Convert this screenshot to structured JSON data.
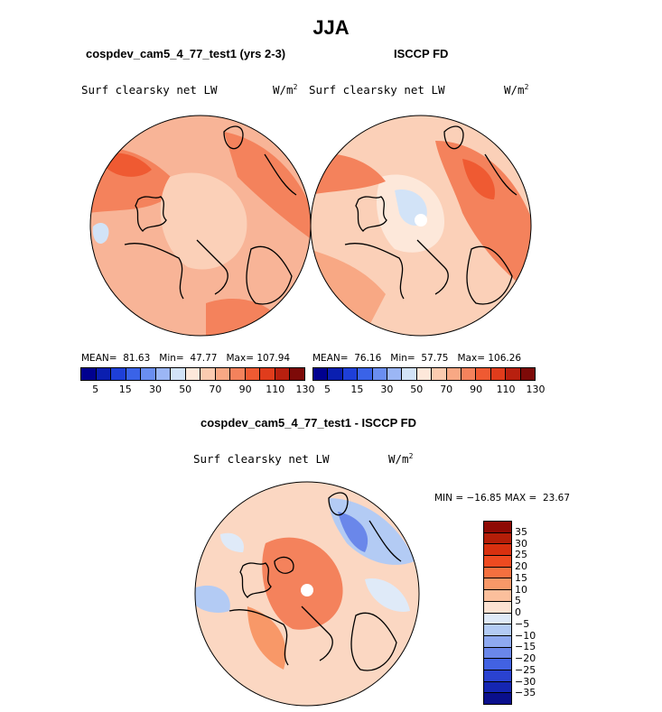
{
  "page": {
    "title": "JJA",
    "left_panel_title": "cospdev_cam5_4_77_test1 (yrs 2-3)",
    "right_panel_title": "ISCCP FD",
    "diff_panel_title": "cospdev_cam5_4_77_test1 - ISCCP FD"
  },
  "panels": {
    "left": {
      "variable": "Surf clearsky net LW",
      "units": "W/m",
      "units_exp": "2",
      "mean_label": "MEAN=",
      "mean": "81.63",
      "min_label": "Min=",
      "min": "47.77",
      "max_label": "Max=",
      "max": "107.94"
    },
    "right": {
      "variable": "Surf clearsky net LW",
      "units": "W/m",
      "units_exp": "2",
      "mean_label": "MEAN=",
      "mean": "76.16",
      "min_label": "Min=",
      "min": "57.75",
      "max_label": "Max=",
      "max": "106.26"
    },
    "diff": {
      "variable": "Surf clearsky net LW",
      "units": "W/m",
      "units_exp": "2",
      "min_label": "MIN =",
      "min": "−16.85",
      "max_label": "MAX =",
      "max": "23.67"
    }
  },
  "colorbar_abs": {
    "colors": [
      "#00008f",
      "#0a1fb0",
      "#1e3fd8",
      "#3a63e8",
      "#6a8ef0",
      "#9bb6f5",
      "#d2e3f7",
      "#fde8da",
      "#fbcbb0",
      "#f8a884",
      "#f4825c",
      "#ef5a32",
      "#e03c1c",
      "#b8200f",
      "#7d0a08"
    ],
    "labels": [
      "5",
      "15",
      "30",
      "50",
      "70",
      "90",
      "110",
      "130"
    ]
  },
  "colorbar_diff": {
    "colors": [
      "#8e0a04",
      "#b41e08",
      "#d8300f",
      "#ee4a20",
      "#f4703f",
      "#f89868",
      "#fbbf9c",
      "#fde2d2",
      "#dfeaf8",
      "#b3cbf4",
      "#8ea9f0",
      "#6a87ea",
      "#4262e2",
      "#2a42d0",
      "#1526b2",
      "#0a0f8c"
    ],
    "labels": [
      "35",
      "30",
      "25",
      "20",
      "15",
      "10",
      "5",
      "0",
      "−5",
      "−10",
      "−15",
      "−20",
      "−25",
      "−30",
      "−35"
    ]
  },
  "map_fill_colors": {
    "base_left": "#f8b497",
    "base_right": "#fbd0b8",
    "warm": "#f4825c",
    "hot": "#ef5a32",
    "pale": "#fde8da",
    "cool": "#d2e3f7",
    "diff_base": "#fbd7c2",
    "diff_warm": "#f4825c",
    "diff_cool": "#b3cbf4",
    "diff_cold": "#6a87ea"
  }
}
